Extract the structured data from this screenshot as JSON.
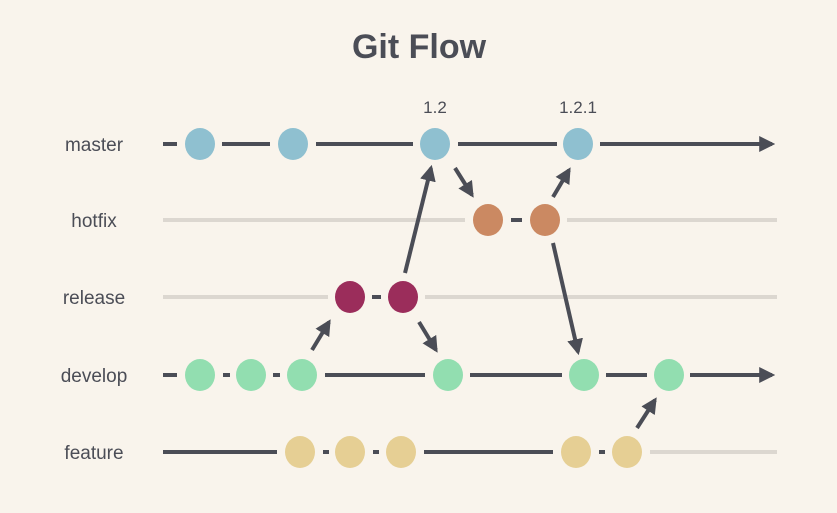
{
  "title": "Git Flow",
  "colors": {
    "background": "#f9f4ec",
    "line": "#4b4d56",
    "inactive_line": "#dcd7d0"
  },
  "branches": [
    {
      "name": "master",
      "color": "#8fc0d0"
    },
    {
      "name": "hotfix",
      "color": "#cb8962"
    },
    {
      "name": "release",
      "color": "#9b2d5b"
    },
    {
      "name": "develop",
      "color": "#92deb0"
    },
    {
      "name": "feature",
      "color": "#e6cf94"
    }
  ],
  "tags": [
    "1.2",
    "1.2.1"
  ]
}
